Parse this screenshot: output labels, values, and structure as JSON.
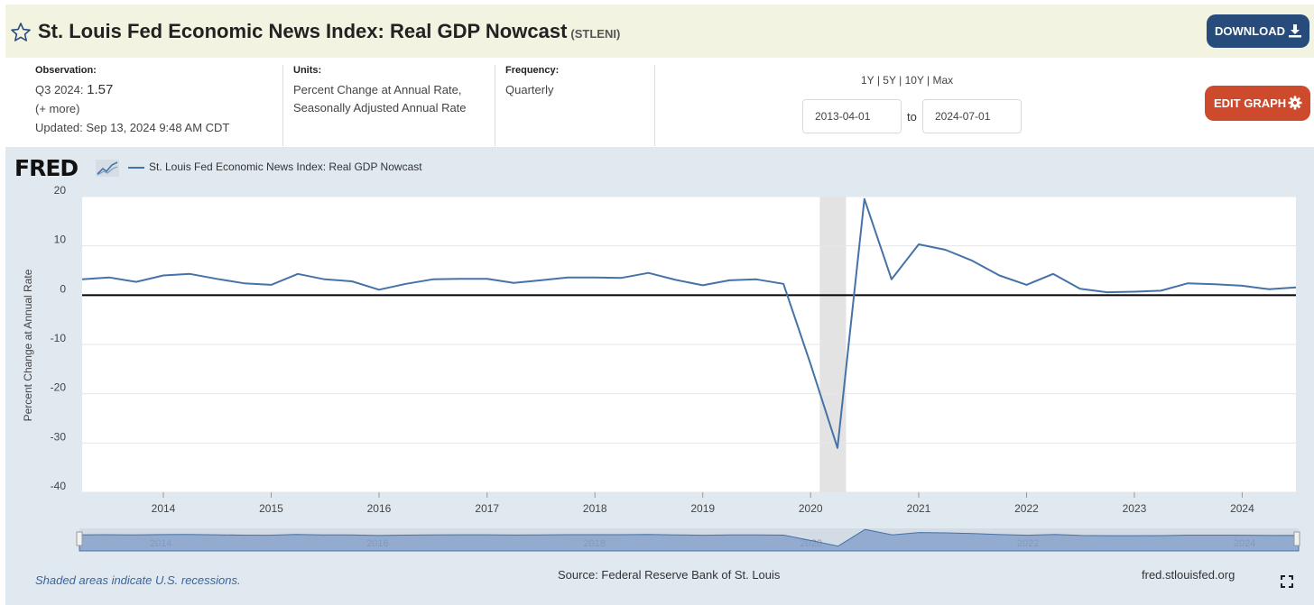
{
  "header": {
    "title": "St. Louis Fed Economic News Index: Real GDP Nowcast",
    "series_id": "(STLENI)",
    "download_label": "DOWNLOAD"
  },
  "meta": {
    "observation_label": "Observation:",
    "observation_period": "Q3 2024:",
    "observation_value": "1.57",
    "more": "(+ more)",
    "updated": "Updated: Sep 13, 2024 9:48 AM CDT",
    "units_label": "Units:",
    "units_line1": "Percent Change at Annual Rate,",
    "units_line2": "Seasonally Adjusted Annual Rate",
    "frequency_label": "Frequency:",
    "frequency_value": "Quarterly"
  },
  "controls": {
    "range_1y": "1Y",
    "range_5y": "5Y",
    "range_10y": "10Y",
    "range_max": "Max",
    "range_sep": "|",
    "start_date": "2013-04-01",
    "to_label": "to",
    "end_date": "2024-07-01",
    "edit_label": "EDIT GRAPH"
  },
  "logo": "FRED",
  "footer": {
    "recession_note": "Shaded areas indicate U.S. recessions.",
    "source": "Source: Federal Reserve Bank of St. Louis",
    "url": "fred.stlouisfed.org"
  },
  "colors": {
    "series": "#4572a7",
    "title_bg": "#f3f3e1",
    "chart_bg": "#e1e9f0",
    "download_btn": "#274b7a",
    "edit_btn": "#cd4a2c",
    "recession": "#e3e3e3"
  },
  "chart_data": {
    "type": "line",
    "legend": "St. Louis Fed Economic News Index: Real GDP Nowcast",
    "ylabel": "Percent Change at Annual Rate",
    "xlabel": "",
    "ylim": [
      -40,
      20
    ],
    "yticks": [
      20,
      10,
      0,
      -10,
      -20,
      -30,
      -40
    ],
    "xticks": [
      "2014",
      "2015",
      "2016",
      "2017",
      "2018",
      "2019",
      "2020",
      "2021",
      "2022",
      "2023",
      "2024"
    ],
    "navigator_ticks": [
      "2014",
      "2016",
      "2018",
      "2020",
      "2022",
      "2024"
    ],
    "grid": true,
    "recessions": [
      [
        "2020-02-01",
        "2020-04-30"
      ]
    ],
    "series": [
      {
        "name": "St. Louis Fed Economic News Index: Real GDP Nowcast",
        "x": [
          "2013-04-01",
          "2013-07-01",
          "2013-10-01",
          "2014-01-01",
          "2014-04-01",
          "2014-07-01",
          "2014-10-01",
          "2015-01-01",
          "2015-04-01",
          "2015-07-01",
          "2015-10-01",
          "2016-01-01",
          "2016-04-01",
          "2016-07-01",
          "2016-10-01",
          "2017-01-01",
          "2017-04-01",
          "2017-07-01",
          "2017-10-01",
          "2018-01-01",
          "2018-04-01",
          "2018-07-01",
          "2018-10-01",
          "2019-01-01",
          "2019-04-01",
          "2019-07-01",
          "2019-10-01",
          "2020-01-01",
          "2020-04-01",
          "2020-07-01",
          "2020-10-01",
          "2021-01-01",
          "2021-04-01",
          "2021-07-01",
          "2021-10-01",
          "2022-01-01",
          "2022-04-01",
          "2022-07-01",
          "2022-10-01",
          "2023-01-01",
          "2023-04-01",
          "2023-07-01",
          "2023-10-01",
          "2024-01-01",
          "2024-04-01",
          "2024-07-01"
        ],
        "values": [
          3.2,
          3.6,
          2.7,
          4.0,
          4.3,
          3.3,
          2.4,
          2.1,
          4.3,
          3.2,
          2.8,
          1.1,
          2.3,
          3.2,
          3.3,
          3.3,
          2.5,
          3.0,
          3.6,
          3.6,
          3.5,
          4.5,
          3.1,
          2.0,
          3.0,
          3.2,
          2.3,
          -14.0,
          -31.0,
          19.5,
          3.2,
          10.3,
          9.2,
          7.0,
          4.0,
          2.1,
          4.3,
          1.3,
          0.6,
          0.7,
          0.9,
          2.4,
          2.2,
          1.9,
          1.2,
          1.57
        ]
      }
    ]
  }
}
